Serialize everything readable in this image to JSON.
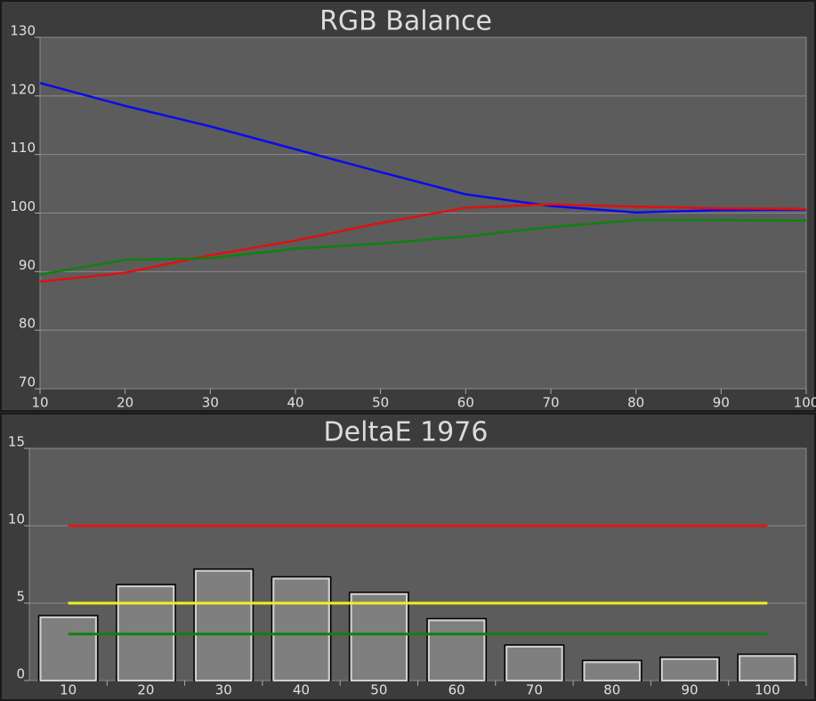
{
  "chart_data": [
    {
      "type": "line",
      "title": "RGB Balance",
      "x": [
        10,
        20,
        30,
        40,
        50,
        60,
        70,
        80,
        90,
        100
      ],
      "xlim": [
        10,
        100
      ],
      "xticks": [
        10,
        20,
        30,
        40,
        50,
        60,
        70,
        80,
        90,
        100
      ],
      "ylim": [
        70,
        130
      ],
      "yticks": [
        70,
        80,
        90,
        100,
        110,
        120,
        130
      ],
      "grid": true,
      "series": [
        {
          "color": "#0a0aee",
          "values": [
            122.2,
            118.3,
            114.8,
            110.9,
            107,
            103.2,
            101.2,
            100.1,
            100.5,
            100.6
          ]
        },
        {
          "color": "#e01010",
          "values": [
            88.3,
            89.8,
            92.8,
            95.3,
            98.3,
            100.9,
            101.5,
            101.1,
            100.8,
            100.7
          ]
        },
        {
          "color": "#108010",
          "values": [
            89.5,
            92,
            92.3,
            93.9,
            94.8,
            96,
            97.6,
            98.8,
            98.8,
            98.7
          ]
        }
      ]
    },
    {
      "type": "bar",
      "title": "DeltaE 1976",
      "categories": [
        "10",
        "20",
        "30",
        "40",
        "50",
        "60",
        "70",
        "80",
        "90",
        "100"
      ],
      "values": [
        4.2,
        6.2,
        7.2,
        6.7,
        5.7,
        4.0,
        2.3,
        1.3,
        1.5,
        1.7
      ],
      "color": "#7f7f7f",
      "ylim": [
        0,
        15
      ],
      "yticks": [
        0,
        5,
        10,
        15
      ],
      "grid": true,
      "reference_lines": [
        {
          "value": 10,
          "color": "#e01818"
        },
        {
          "value": 5,
          "color": "#f0f020"
        },
        {
          "value": 3,
          "color": "#108010"
        }
      ]
    }
  ]
}
